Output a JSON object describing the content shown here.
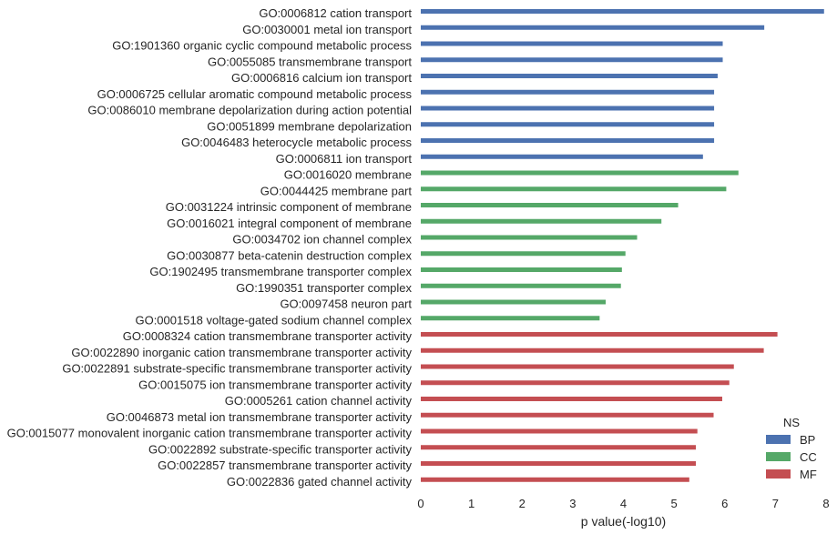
{
  "chart_data": {
    "type": "bar",
    "orientation": "horizontal",
    "xlabel": "p value(-log10)",
    "xlim": [
      0,
      8
    ],
    "xticks": [
      0,
      1,
      2,
      3,
      4,
      5,
      6,
      7,
      8
    ],
    "grid": false,
    "legend": {
      "title": "NS",
      "placement": "bottom-right",
      "entries": [
        {
          "name": "BP",
          "color": "#4c72b0"
        },
        {
          "name": "CC",
          "color": "#55a868"
        },
        {
          "name": "MF",
          "color": "#c44e52"
        }
      ]
    },
    "bars": [
      {
        "label": "GO:0006812 cation transport",
        "value": 7.96,
        "ns": "BP"
      },
      {
        "label": "GO:0030001 metal ion transport",
        "value": 6.78,
        "ns": "BP"
      },
      {
        "label": "GO:1901360 organic cyclic compound metabolic process",
        "value": 5.96,
        "ns": "BP"
      },
      {
        "label": "GO:0055085 transmembrane transport",
        "value": 5.96,
        "ns": "BP"
      },
      {
        "label": "GO:0006816 calcium ion transport",
        "value": 5.86,
        "ns": "BP"
      },
      {
        "label": "GO:0006725 cellular aromatic compound metabolic process",
        "value": 5.79,
        "ns": "BP"
      },
      {
        "label": "GO:0086010 membrane depolarization during action potential",
        "value": 5.79,
        "ns": "BP"
      },
      {
        "label": "GO:0051899 membrane depolarization",
        "value": 5.79,
        "ns": "BP"
      },
      {
        "label": "GO:0046483 heterocycle metabolic process",
        "value": 5.79,
        "ns": "BP"
      },
      {
        "label": "GO:0006811 ion transport",
        "value": 5.57,
        "ns": "BP"
      },
      {
        "label": "GO:0016020 membrane",
        "value": 6.27,
        "ns": "CC"
      },
      {
        "label": "GO:0044425 membrane part",
        "value": 6.03,
        "ns": "CC"
      },
      {
        "label": "GO:0031224 intrinsic component of membrane",
        "value": 5.08,
        "ns": "CC"
      },
      {
        "label": "GO:0016021 integral component of membrane",
        "value": 4.75,
        "ns": "CC"
      },
      {
        "label": "GO:0034702 ion channel complex",
        "value": 4.27,
        "ns": "CC"
      },
      {
        "label": "GO:0030877 beta-catenin destruction complex",
        "value": 4.04,
        "ns": "CC"
      },
      {
        "label": "GO:1902495 transmembrane transporter complex",
        "value": 3.97,
        "ns": "CC"
      },
      {
        "label": "GO:1990351 transporter complex",
        "value": 3.95,
        "ns": "CC"
      },
      {
        "label": "GO:0097458 neuron part",
        "value": 3.65,
        "ns": "CC"
      },
      {
        "label": "GO:0001518 voltage-gated sodium channel complex",
        "value": 3.53,
        "ns": "CC"
      },
      {
        "label": "GO:0008324 cation transmembrane transporter activity",
        "value": 7.04,
        "ns": "MF"
      },
      {
        "label": "GO:0022890 inorganic cation transmembrane transporter activity",
        "value": 6.77,
        "ns": "MF"
      },
      {
        "label": "GO:0022891 substrate-specific transmembrane transporter activity",
        "value": 6.18,
        "ns": "MF"
      },
      {
        "label": "GO:0015075 ion transmembrane transporter activity",
        "value": 6.09,
        "ns": "MF"
      },
      {
        "label": "GO:0005261 cation channel activity",
        "value": 5.95,
        "ns": "MF"
      },
      {
        "label": "GO:0046873 metal ion transmembrane transporter activity",
        "value": 5.78,
        "ns": "MF"
      },
      {
        "label": "GO:0015077 monovalent inorganic cation transmembrane transporter activity",
        "value": 5.46,
        "ns": "MF"
      },
      {
        "label": "GO:0022892 substrate-specific transporter activity",
        "value": 5.43,
        "ns": "MF"
      },
      {
        "label": "GO:0022857 transmembrane transporter activity",
        "value": 5.43,
        "ns": "MF"
      },
      {
        "label": "GO:0022836 gated channel activity",
        "value": 5.3,
        "ns": "MF"
      }
    ]
  }
}
